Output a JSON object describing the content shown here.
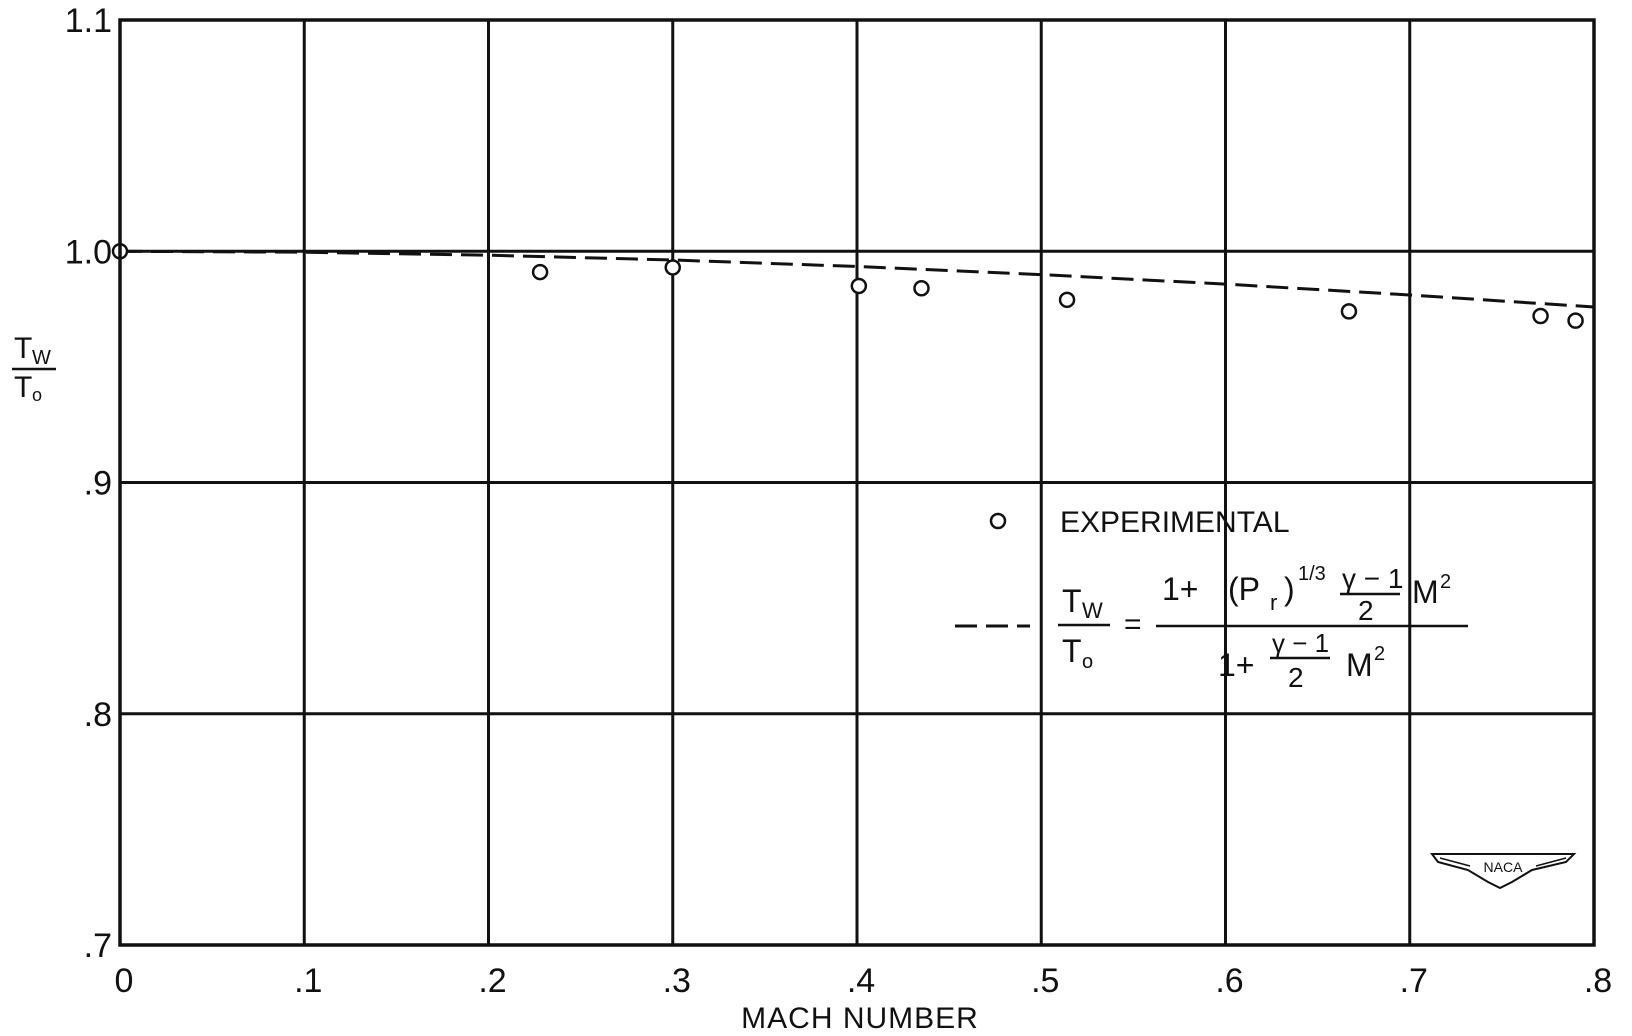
{
  "chart_data": {
    "type": "scatter",
    "title": "",
    "xlabel": "MACH NUMBER",
    "ylabel_num": "T",
    "ylabel_num_sub": "W",
    "ylabel_den": "T",
    "ylabel_den_sub": "o",
    "xlim": [
      0,
      0.8
    ],
    "ylim": [
      0.7,
      1.1
    ],
    "x_ticks": [
      0,
      0.1,
      0.2,
      0.3,
      0.4,
      0.5,
      0.6,
      0.7,
      0.8
    ],
    "x_tick_labels": [
      "0",
      ".1",
      ".2",
      ".3",
      ".4",
      ".5",
      ".6",
      ".7",
      ".8"
    ],
    "y_ticks": [
      0.7,
      0.8,
      0.9,
      1.0,
      1.1
    ],
    "y_tick_labels": [
      ".7",
      ".8",
      ".9",
      "1.0",
      "1.1"
    ],
    "grid": true,
    "legend_position": "center-right",
    "series": [
      {
        "name": "EXPERIMENTAL",
        "kind": "points",
        "x": [
          0.0,
          0.228,
          0.3,
          0.401,
          0.435,
          0.514,
          0.667,
          0.771,
          0.79
        ],
        "y": [
          1.0,
          0.991,
          0.993,
          0.985,
          0.984,
          0.979,
          0.974,
          0.972,
          0.97
        ]
      },
      {
        "name": "",
        "kind": "dashed-line",
        "x": [
          0.0,
          0.1,
          0.2,
          0.3,
          0.4,
          0.5,
          0.6,
          0.7,
          0.8
        ],
        "y": [
          1.0,
          0.9996,
          0.9983,
          0.9962,
          0.9934,
          0.9899,
          0.9858,
          0.9811,
          0.9759
        ]
      }
    ],
    "legend": {
      "experimental_label": "EXPERIMENTAL",
      "formula": {
        "lhs_num": "T",
        "lhs_num_sub": "W",
        "lhs_den": "T",
        "lhs_den_sub": "o",
        "equals": "=",
        "num_one_plus": "1+",
        "pr": "(P",
        "pr_sub": "r",
        "pr_close": ")",
        "pr_exp": "1/3",
        "gamma_num": "γ − 1",
        "two": "2",
        "m": "M",
        "m_exp": "2",
        "den_one_plus": "1+",
        "den_gamma_num": "γ − 1",
        "den_two": "2",
        "den_m": "M",
        "den_m_exp": "2"
      }
    },
    "logo": "NACA",
    "colors": {
      "ink": "#111111",
      "background": "#ffffff"
    }
  }
}
